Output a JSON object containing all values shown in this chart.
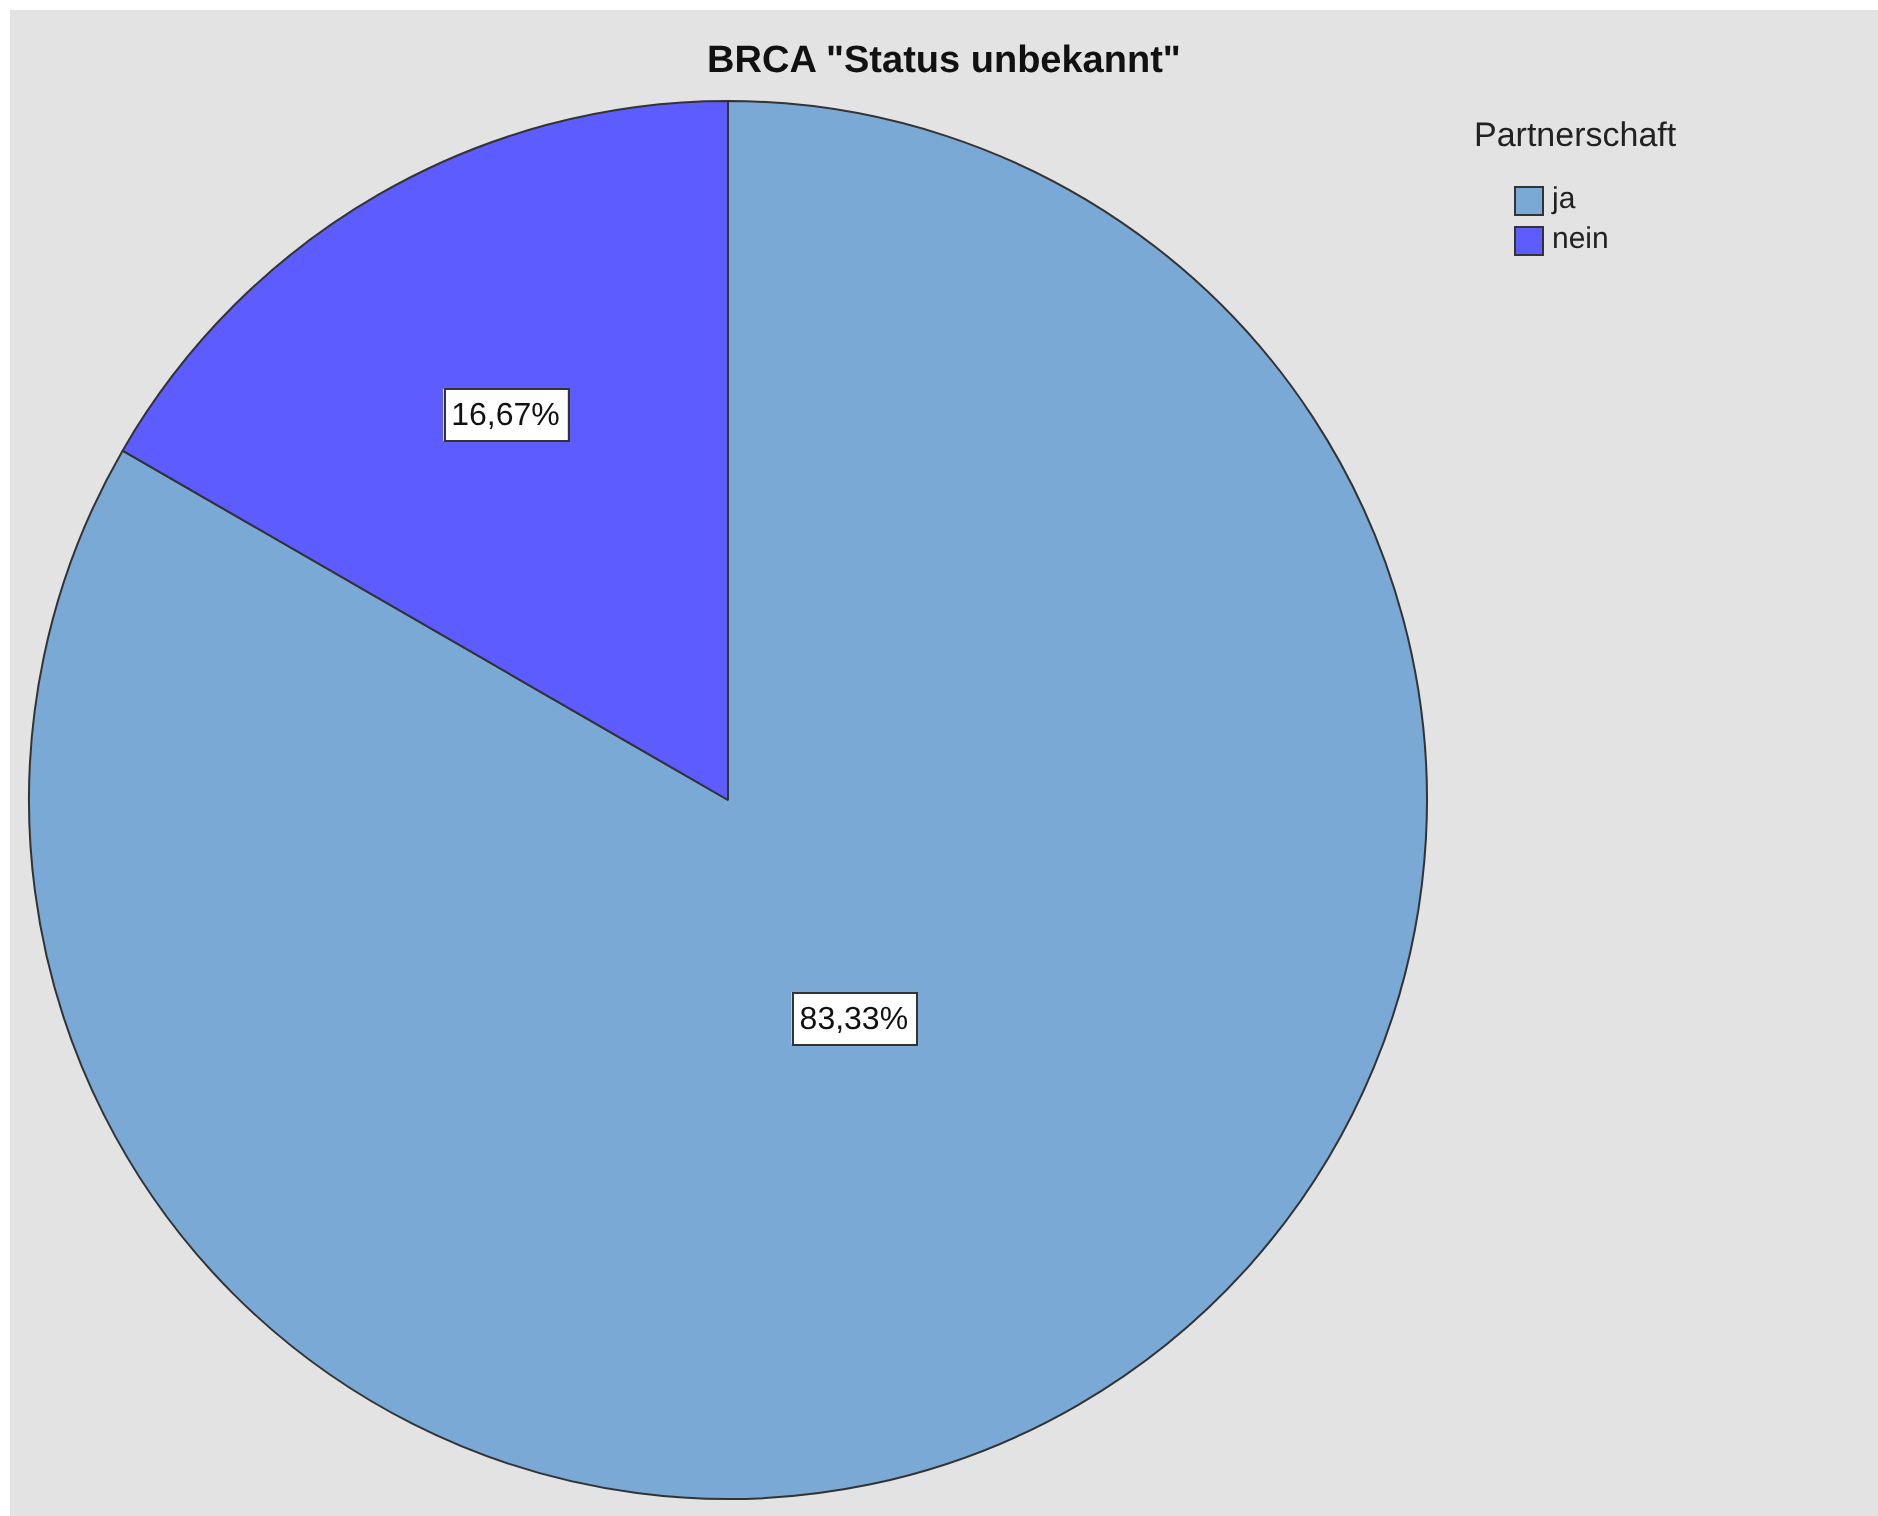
{
  "chart_data": {
    "type": "pie",
    "title": "BRCA \"Status unbekannt\"",
    "legend_title": "Partnerschaft",
    "legend": "top right",
    "categories": [
      "ja",
      "nein"
    ],
    "values": [
      83.33,
      16.67
    ],
    "colors": [
      "#7aa9d6",
      "#5c5cff"
    ],
    "value_labels": [
      "83,33%",
      "16,67%"
    ]
  }
}
